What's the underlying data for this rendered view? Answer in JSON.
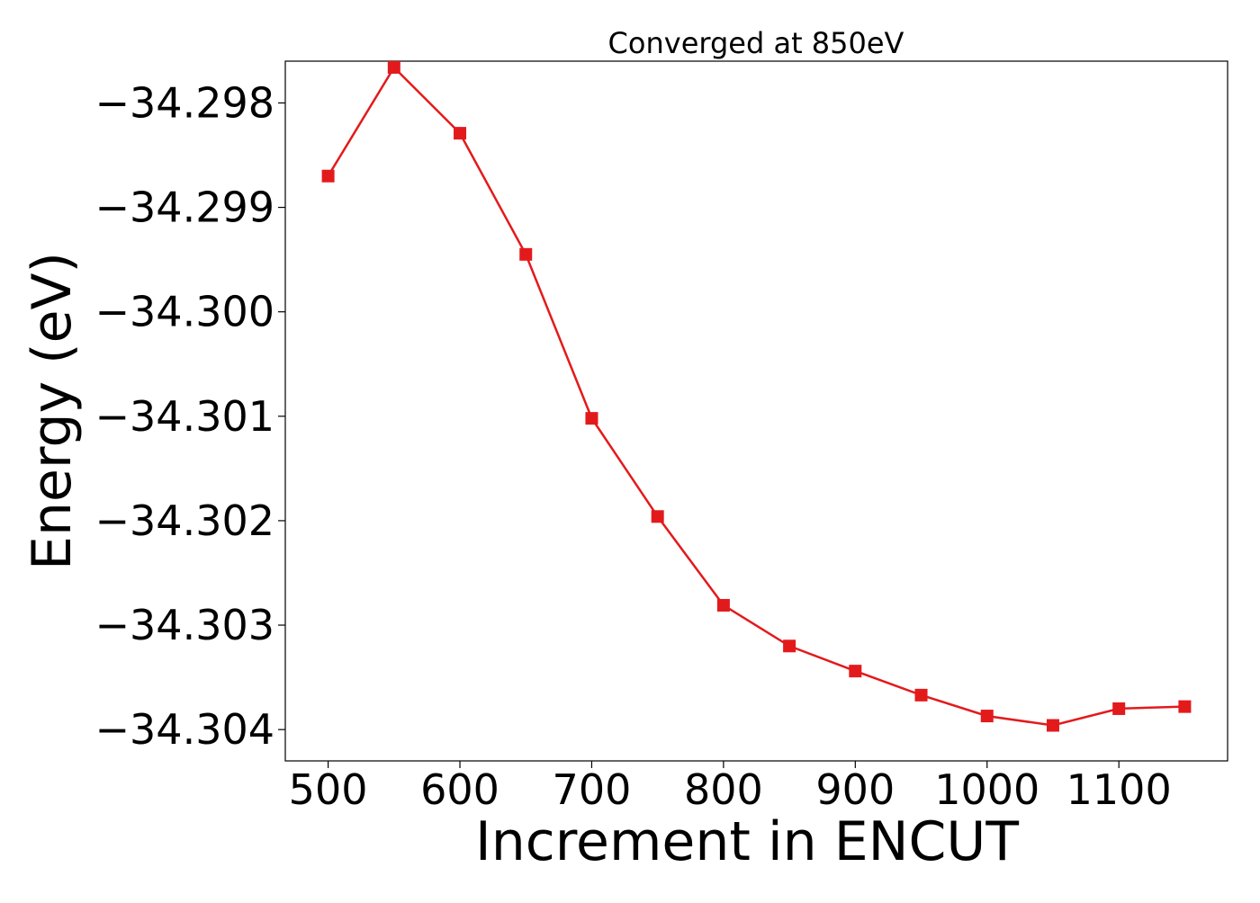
{
  "chart_data": {
    "type": "line",
    "title": "Converged at 850eV",
    "xlabel": "Increment in ENCUT",
    "ylabel": "Energy (eV)",
    "xlim": [
      467.5,
      1182.5
    ],
    "ylim": [
      -34.3043,
      -34.2976
    ],
    "xticks": [
      500,
      600,
      700,
      800,
      900,
      1000,
      1100
    ],
    "xtick_labels": [
      "500",
      "600",
      "700",
      "800",
      "900",
      "1000",
      "1100"
    ],
    "yticks": [
      -34.298,
      -34.299,
      -34.3,
      -34.301,
      -34.302,
      -34.303,
      -34.304
    ],
    "ytick_labels": [
      "−34.298",
      "−34.299",
      "−34.300",
      "−34.301",
      "−34.302",
      "−34.303",
      "−34.304"
    ],
    "grid": false,
    "legend": "none",
    "series": [
      {
        "color": "#e31a1c",
        "marker": "square",
        "x": [
          500,
          550,
          600,
          650,
          700,
          750,
          800,
          850,
          900,
          950,
          1000,
          1050,
          1100,
          1150
        ],
        "y": [
          -34.2987,
          -34.29766,
          -34.29829,
          -34.29945,
          -34.30102,
          -34.30196,
          -34.30281,
          -34.3032,
          -34.30344,
          -34.30367,
          -34.30387,
          -34.30396,
          -34.3038,
          -34.30378
        ]
      }
    ]
  }
}
